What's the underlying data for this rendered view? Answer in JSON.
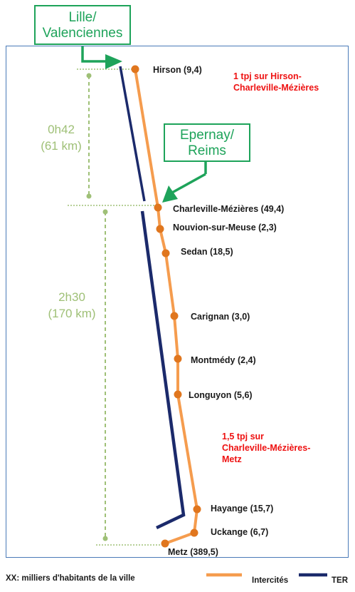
{
  "callouts": {
    "lille": [
      "Lille/",
      "Valenciennes"
    ],
    "epernay": [
      "Epernay/",
      "Reims"
    ]
  },
  "stations": [
    {
      "label": "Hirson (9,4)"
    },
    {
      "label": "Charleville-Mézières (49,4)"
    },
    {
      "label": "Nouvion-sur-Meuse (2,3)"
    },
    {
      "label": "Sedan (18,5)"
    },
    {
      "label": "Carignan  (3,0)"
    },
    {
      "label": "Montmédy (2,4)"
    },
    {
      "label": "Longuyon (5,6)"
    },
    {
      "label": "Hayange  (15,7)"
    },
    {
      "label": "Uckange (6,7)"
    },
    {
      "label": "Metz (389,5)"
    }
  ],
  "notes": {
    "north": [
      "1 tpj sur Hirson-",
      "Charleville-Mézières"
    ],
    "south": [
      "1,5 tpj sur",
      "Charleville-Mézières-",
      "Metz"
    ]
  },
  "durations": {
    "north": [
      "0h42",
      "(61 km)"
    ],
    "south": [
      "2h30",
      "(170 km)"
    ]
  },
  "legend": {
    "caption": "XX: milliers d'habitants  de la ville",
    "intercites": "Intercités",
    "ter": "TER"
  },
  "colors": {
    "intercites": "#f59c4e",
    "ter": "#1b2a6b",
    "station": "#e0761e",
    "callout": "#1ea35a",
    "duration": "#9fc077",
    "note": "#ee1111"
  }
}
